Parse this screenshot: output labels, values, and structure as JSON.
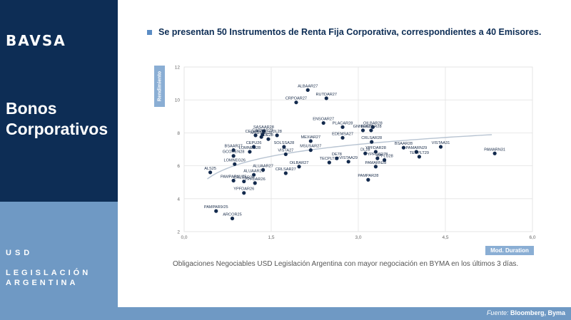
{
  "brand": {
    "logo_text": "BAVSA"
  },
  "sidebar": {
    "section_title": "Bonos Corporativos",
    "tag_currency": "USD",
    "tag_legislation": "LEGISLACIÓN ARGENTINA"
  },
  "header": {
    "headline": "Se presentan 50 Instrumentos de Renta Fija Corporativa, correspondientes a 40 Emisores."
  },
  "caption": "Obligaciones Negociables USD Legislación Argentina con mayor negociación en BYMA en los últimos 3 días.",
  "footer": {
    "source_label": "Fuente:",
    "source_value": "Bloomberg, Byma"
  },
  "colors": {
    "dot": "#132a4d",
    "trend": "#b8c4d2",
    "grid": "#e3e3e3",
    "accent": "#8aaed4",
    "navy": "#0d2d55"
  },
  "chart_data": {
    "type": "scatter",
    "title": "",
    "xlabel": "Mod. Duration",
    "ylabel": "Rendimiento",
    "xlim": [
      0,
      6
    ],
    "ylim": [
      2,
      12
    ],
    "xticks": [
      0,
      1.5,
      3,
      4.5,
      6
    ],
    "xtick_labels": [
      "0,0",
      "1,5",
      "3,0",
      "4,5",
      "6,0"
    ],
    "yticks": [
      2,
      4,
      6,
      8,
      10,
      12
    ],
    "ytick_labels": [
      "2",
      "4",
      "6",
      "8",
      "10",
      "12"
    ],
    "trendline": {
      "type": "logarithmic",
      "x_from": 0.4,
      "x_to": 5.3
    },
    "points": [
      {
        "label": "ALBAAR27",
        "x": 2.13,
        "y": 10.6
      },
      {
        "label": "RUTDAR27",
        "x": 2.45,
        "y": 10.1
      },
      {
        "label": "CRPOAR27",
        "x": 1.93,
        "y": 9.85
      },
      {
        "label": "ENSOAR27",
        "x": 2.4,
        "y": 8.6
      },
      {
        "label": "PLACAR28",
        "x": 2.73,
        "y": 8.35
      },
      {
        "label": "OILBAR28",
        "x": 3.25,
        "y": 8.35
      },
      {
        "label": "GNNEIA28",
        "x": 3.08,
        "y": 8.15
      },
      {
        "label": "TECOAR28",
        "x": 3.22,
        "y": 8.15
      },
      {
        "label": "SASAAR28",
        "x": 1.37,
        "y": 8.1
      },
      {
        "label": "CAPXAR28",
        "x": 1.35,
        "y": 7.9
      },
      {
        "label": "MSUSAR28",
        "x": 1.33,
        "y": 7.75
      },
      {
        "label": "CELUAR28",
        "x": 1.23,
        "y": 7.85
      },
      {
        "label": "DL28",
        "x": 1.6,
        "y": 7.85
      },
      {
        "label": "DE28",
        "x": 1.45,
        "y": 7.62
      },
      {
        "label": "EDEMSA27",
        "x": 2.73,
        "y": 7.7
      },
      {
        "label": "MEXIAR27",
        "x": 2.18,
        "y": 7.5
      },
      {
        "label": "CRLSAR28",
        "x": 3.23,
        "y": 7.45
      },
      {
        "label": "SOLSSA28",
        "x": 1.72,
        "y": 7.15
      },
      {
        "label": "CEPU26",
        "x": 1.2,
        "y": 7.15
      },
      {
        "label": "MSUSAR27",
        "x": 2.18,
        "y": 6.95
      },
      {
        "label": "BSAAR28",
        "x": 3.78,
        "y": 7.1
      },
      {
        "label": "YPFDAR28",
        "x": 3.3,
        "y": 6.85
      },
      {
        "label": "DL28",
        "x": 3.12,
        "y": 6.75
      },
      {
        "label": "PAMARN29",
        "x": 4.0,
        "y": 6.85
      },
      {
        "label": "VISTAA31",
        "x": 4.42,
        "y": 7.15
      },
      {
        "label": "PAMARN31",
        "x": 5.35,
        "y": 6.75
      },
      {
        "label": "BSAAR27",
        "x": 0.85,
        "y": 6.95
      },
      {
        "label": "LOMNEG28",
        "x": 1.13,
        "y": 6.85
      },
      {
        "label": "VISTA27",
        "x": 1.75,
        "y": 6.7
      },
      {
        "label": "GCOHEN28",
        "x": 0.85,
        "y": 6.6
      },
      {
        "label": "TECPLT27",
        "x": 2.5,
        "y": 6.2
      },
      {
        "label": "DE78",
        "x": 2.63,
        "y": 6.45
      },
      {
        "label": "YPFDAR78",
        "x": 3.33,
        "y": 6.45
      },
      {
        "label": "YPFLU28",
        "x": 3.45,
        "y": 6.35
      },
      {
        "label": "TECPLT29",
        "x": 4.05,
        "y": 6.55
      },
      {
        "label": "VISTAA29",
        "x": 2.83,
        "y": 6.25
      },
      {
        "label": "LOMNEG26",
        "x": 0.87,
        "y": 6.1
      },
      {
        "label": "ALUAAR27",
        "x": 1.36,
        "y": 5.75
      },
      {
        "label": "OILBAR27",
        "x": 1.98,
        "y": 5.95
      },
      {
        "label": "PAMARN28",
        "x": 3.3,
        "y": 5.95
      },
      {
        "label": "ALS25",
        "x": 0.45,
        "y": 5.6
      },
      {
        "label": "ALUAAR26",
        "x": 1.2,
        "y": 5.45
      },
      {
        "label": "CRLSAR27",
        "x": 1.75,
        "y": 5.55
      },
      {
        "label": "PAMPAR28",
        "x": 3.17,
        "y": 5.15
      },
      {
        "label": "PAMPAR11/25",
        "x": 0.85,
        "y": 5.1
      },
      {
        "label": "CRLSAR26",
        "x": 1.03,
        "y": 5.05
      },
      {
        "label": "YPFDAR26",
        "x": 1.22,
        "y": 4.95
      },
      {
        "label": "YPFDAR26",
        "x": 1.03,
        "y": 4.35
      },
      {
        "label": "PAMPAR9/25",
        "x": 0.55,
        "y": 3.25
      },
      {
        "label": "ARCOR25",
        "x": 0.83,
        "y": 2.8
      }
    ]
  }
}
